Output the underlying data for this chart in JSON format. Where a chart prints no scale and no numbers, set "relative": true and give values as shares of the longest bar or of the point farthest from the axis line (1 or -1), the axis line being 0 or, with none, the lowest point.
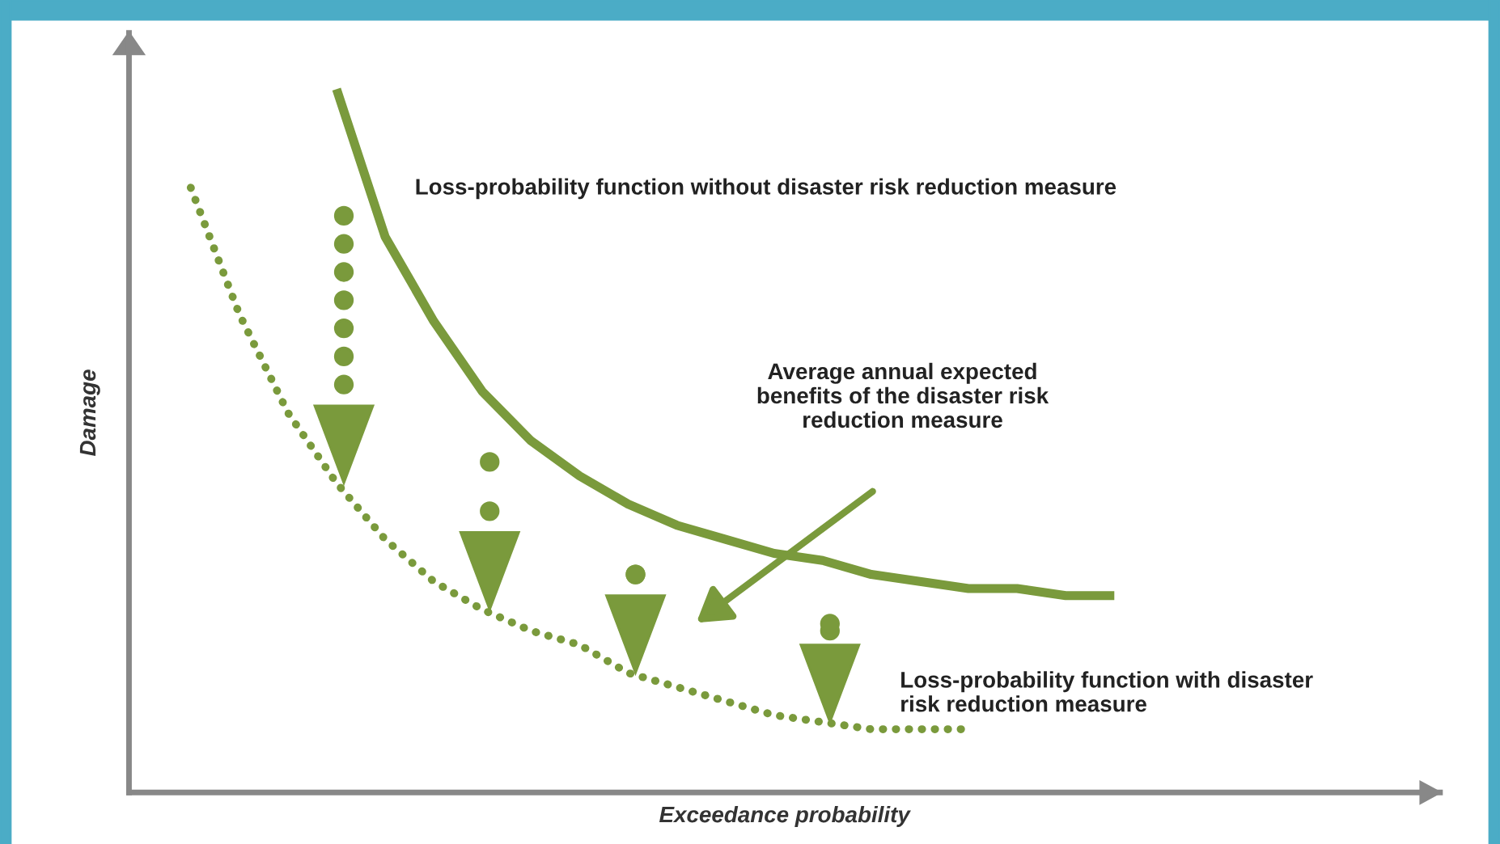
{
  "chart_data": {
    "type": "line",
    "relative": true,
    "xlabel": "Exceedance probability",
    "ylabel": "Damage",
    "categories": [
      null,
      null,
      null,
      null,
      null,
      null,
      null,
      null,
      null,
      null,
      null,
      null,
      null,
      null,
      null,
      null,
      null,
      null,
      null,
      null
    ],
    "series": [
      {
        "name": "Loss-probability function without disaster risk reduction measure",
        "color": "#7a9a3c",
        "line_style": "solid",
        "values": [
          null,
          null,
          null,
          1,
          0.79,
          0.67,
          0.57,
          0.5,
          0.45,
          0.41,
          0.38,
          0.36,
          0.34,
          0.33,
          0.31,
          0.3,
          0.29,
          0.29,
          0.28,
          0.28
        ]
      },
      {
        "name": "Loss-probability function with disaster\nrisk reduction measure",
        "color": "#7a9a3c",
        "line_style": "dotted",
        "values": [
          0.86,
          0.68,
          0.54,
          0.44,
          0.36,
          0.3,
          0.26,
          0.23,
          0.21,
          0.17,
          0.15,
          0.13,
          0.11,
          0.1,
          0.09,
          0.09,
          0.09,
          null,
          null,
          null
        ]
      }
    ],
    "annotations": [
      "Average annual expected\nbenefits of the disaster risk\nreduction measure"
    ],
    "legend": false,
    "grid": false,
    "marker": "none"
  }
}
